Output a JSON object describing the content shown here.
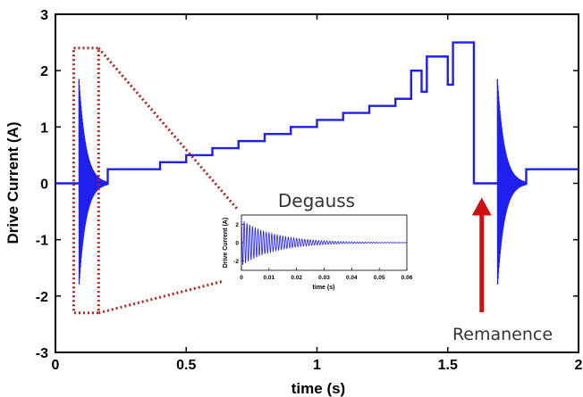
{
  "colors": {
    "trace": "#1f1ff0",
    "zoom_box": "#b22222",
    "arrow": "#d01010",
    "axes": "#000000"
  },
  "chart_data": [
    {
      "type": "line",
      "title": "",
      "xlabel": "time (s)",
      "ylabel": "Drive Current (A)",
      "xlim": [
        0,
        2
      ],
      "ylim": [
        -3,
        3
      ],
      "xticks": [
        0,
        0.5,
        1,
        1.5,
        2
      ],
      "xtick_labels": [
        "0",
        "0.5",
        "1",
        "1.5",
        "2"
      ],
      "yticks": [
        -3,
        -2,
        -1,
        0,
        1,
        2,
        3
      ],
      "ytick_labels": [
        "-3",
        "-2",
        "-1",
        "0",
        "1",
        "2",
        "3"
      ],
      "grid": false,
      "series": [
        {
          "steps": [
            {
              "t": 0.0,
              "i": 0.0
            },
            {
              "t": 0.16,
              "i": 0.0
            },
            {
              "t": 0.2,
              "i": 0.25
            },
            {
              "t": 0.4,
              "i": 0.375
            },
            {
              "t": 0.5,
              "i": 0.5
            },
            {
              "t": 0.6,
              "i": 0.625
            },
            {
              "t": 0.7,
              "i": 0.75
            },
            {
              "t": 0.8,
              "i": 0.875
            },
            {
              "t": 0.9,
              "i": 1.0
            },
            {
              "t": 1.0,
              "i": 1.125
            },
            {
              "t": 1.1,
              "i": 1.25
            },
            {
              "t": 1.2,
              "i": 1.375
            },
            {
              "t": 1.3,
              "i": 1.5
            },
            {
              "t": 1.4,
              "i": 1.625
            },
            {
              "t": 1.5,
              "i": 1.75
            },
            {
              "t": 1.6,
              "i": 0.0
            },
            {
              "t": 1.8,
              "i": 0.25
            },
            {
              "t": 2.0,
              "i": 0.25
            }
          ],
          "steps_part2": [
            {
              "t": 1.36,
              "i": 2.0
            },
            {
              "t": 1.42,
              "i": 2.25
            },
            {
              "t": 1.52,
              "i": 2.5
            }
          ],
          "degauss_bursts": [
            {
              "start": 0.09,
              "end": 0.2,
              "peak": 1.85
            },
            {
              "start": 1.69,
              "end": 1.8,
              "peak": 1.85
            }
          ]
        }
      ],
      "annotations": {
        "remanence_label": "Remanence",
        "remanence_at": {
          "t": 1.63,
          "i": 0.0
        }
      }
    },
    {
      "type": "line",
      "title": "Degauss",
      "xlabel": "time (s)",
      "ylabel": "Drive Current (A)",
      "xlim": [
        0,
        0.06
      ],
      "ylim": [
        -3,
        3
      ],
      "xticks": [
        0,
        0.01,
        0.02,
        0.03,
        0.04,
        0.05,
        0.06
      ],
      "xtick_labels": [
        "0",
        "0.01",
        "0.02",
        "0.03",
        "0.04",
        "0.05",
        "0.06"
      ],
      "yticks": [
        -2,
        0,
        2
      ],
      "ytick_labels": [
        "-2",
        "0",
        "2"
      ],
      "series": [
        {
          "amplitude": 2.5,
          "frequency_hz": 1000,
          "decay_tau_s": 0.012
        }
      ]
    }
  ]
}
